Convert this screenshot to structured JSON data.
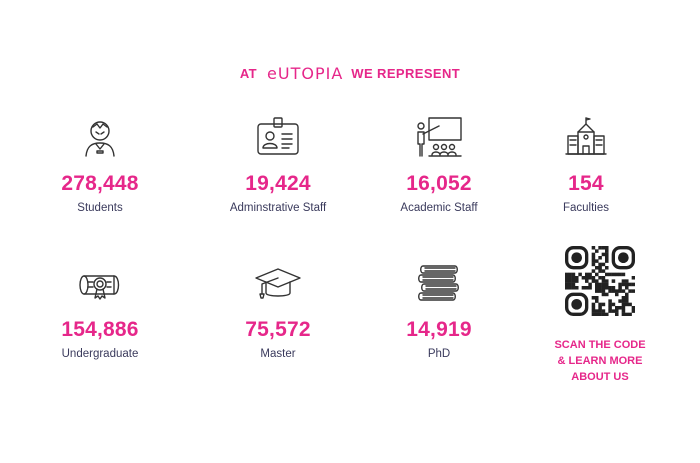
{
  "header": {
    "prefix": "AT",
    "brand": "eUTOPIA",
    "suffix": "WE REPRESENT"
  },
  "stats": [
    {
      "value": "278,448",
      "label": "Students",
      "icon": "student-icon"
    },
    {
      "value": "19,424",
      "label": "Adminstrative Staff",
      "icon": "id-badge-icon"
    },
    {
      "value": "16,052",
      "label": "Academic Staff",
      "icon": "teacher-board-icon"
    },
    {
      "value": "154",
      "label": "Faculties",
      "icon": "building-icon"
    },
    {
      "value": "154,886",
      "label": "Undergraduate",
      "icon": "diploma-icon"
    },
    {
      "value": "75,572",
      "label": "Master",
      "icon": "graduation-cap-icon"
    },
    {
      "value": "14,919",
      "label": "PhD",
      "icon": "books-icon"
    }
  ],
  "qr": {
    "line1": "SCAN THE CODE",
    "line2": "& LEARN MORE",
    "line3": "ABOUT US"
  },
  "colors": {
    "accent": "#e6278a",
    "text": "#3a3a5c"
  }
}
